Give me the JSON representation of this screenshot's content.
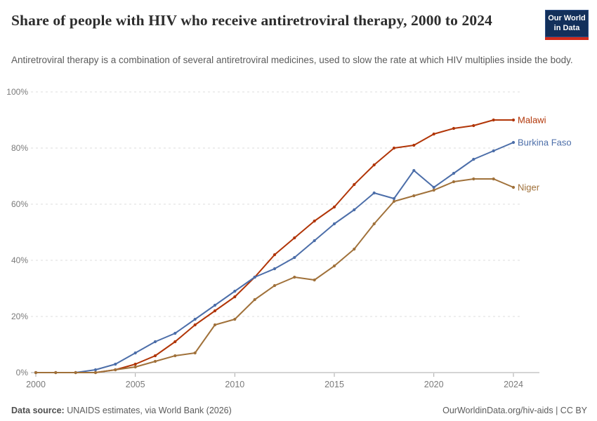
{
  "header": {
    "title": "Share of people with HIV who receive antiretroviral therapy, 2000 to 2024",
    "subtitle": "Antiretroviral therapy is a combination of several antiretroviral medicines, used to slow the rate at which HIV multiplies inside the body.",
    "logo": {
      "line1": "Our World",
      "line2": "in Data",
      "bg_color": "#12305B",
      "bar_color": "#D02A1A"
    }
  },
  "chart_data": {
    "type": "line",
    "title": "Share of people with HIV who receive antiretroviral therapy, 2000 to 2024",
    "x": [
      2000,
      2001,
      2002,
      2003,
      2004,
      2005,
      2006,
      2007,
      2008,
      2009,
      2010,
      2011,
      2012,
      2013,
      2014,
      2015,
      2016,
      2017,
      2018,
      2019,
      2020,
      2021,
      2022,
      2023,
      2024
    ],
    "series": [
      {
        "name": "Malawi",
        "color": "#B13507",
        "values": [
          0,
          0,
          0,
          0,
          1,
          3,
          6,
          11,
          17,
          22,
          27,
          34,
          42,
          48,
          54,
          59,
          67,
          74,
          80,
          81,
          85,
          87,
          88,
          90,
          90
        ]
      },
      {
        "name": "Burkina Faso",
        "color": "#4C6EA9",
        "values": [
          0,
          0,
          0,
          1,
          3,
          7,
          11,
          14,
          19,
          24,
          29,
          34,
          37,
          41,
          47,
          53,
          58,
          64,
          62,
          72,
          66,
          71,
          76,
          79,
          82
        ]
      },
      {
        "name": "Niger",
        "color": "#A0713A",
        "values": [
          0,
          0,
          0,
          0,
          1,
          2,
          4,
          6,
          7,
          17,
          19,
          26,
          31,
          34,
          33,
          38,
          44,
          53,
          61,
          63,
          65,
          68,
          69,
          69,
          66
        ]
      }
    ],
    "ylim": [
      0,
      100
    ],
    "xlabel": "",
    "ylabel": "",
    "grid": "horizontal-dashed",
    "legend_position": "right-of-line-ends",
    "y_ticks": [
      {
        "value": 0,
        "label": "0%"
      },
      {
        "value": 20,
        "label": "20%"
      },
      {
        "value": 40,
        "label": "40%"
      },
      {
        "value": 60,
        "label": "60%"
      },
      {
        "value": 80,
        "label": "80%"
      },
      {
        "value": 100,
        "label": "100%"
      }
    ],
    "x_ticks": [
      {
        "value": 2000,
        "label": "2000"
      },
      {
        "value": 2005,
        "label": "2005"
      },
      {
        "value": 2010,
        "label": "2010"
      },
      {
        "value": 2015,
        "label": "2015"
      },
      {
        "value": 2020,
        "label": "2020"
      },
      {
        "value": 2024,
        "label": "2024"
      }
    ]
  },
  "footer": {
    "source_label": "Data source:",
    "source_text": " UNAIDS estimates, via World Bank (2026)",
    "license_text": "OurWorldinData.org/hiv-aids | CC BY"
  }
}
